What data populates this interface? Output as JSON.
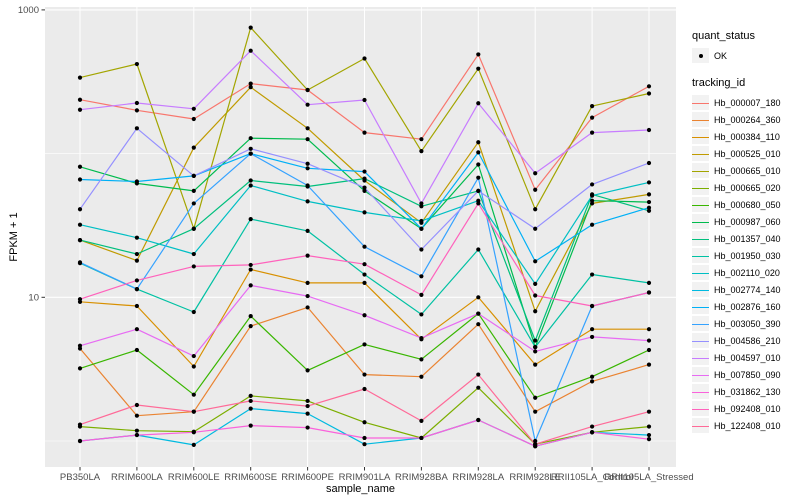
{
  "figure": {
    "colors": {
      "panel_background": "#EBEBEB",
      "gridline": "#FFFFFF",
      "axis_text": "#4D4D4D",
      "tick_mark": "#333333",
      "point": "#000000",
      "legend_key_background": "#F2F2F2"
    }
  },
  "chart_data": {
    "type": "line",
    "title": "",
    "xlabel": "sample_name",
    "ylabel": "FPKM + 1",
    "y_scale": "log10",
    "ylim": [
      0.6,
      1100
    ],
    "y_tick_labels": [
      {
        "value": 1000,
        "label": "1000"
      },
      {
        "value": 10,
        "label": "10"
      }
    ],
    "y_major_gridlines": [
      10,
      1000
    ],
    "y_minor_gridlines": [
      1,
      100
    ],
    "grid": "on",
    "legend_position": "right",
    "point_legend": {
      "title": "quant_status",
      "label": "OK"
    },
    "legend_title": "tracking_id",
    "categories": [
      "PB350LA",
      "RRIM600LA",
      "RRIM600LE",
      "RRIM600SE",
      "RRIM600PE",
      "RRIM901LA",
      "RRIM928BA",
      "RRIM928LA",
      "RRIM928LE",
      "RRII105LA_Control",
      "RRII105LA_Stressed"
    ],
    "series": [
      {
        "name": "Hb_000007_180",
        "color": "#F8766D",
        "values": [
          237,
          200,
          174,
          307,
          277,
          140,
          126,
          490,
          56,
          178,
          294
        ]
      },
      {
        "name": "Hb_000264_360",
        "color": "#EA8331",
        "values": [
          4.4,
          1.5,
          1.6,
          6.3,
          8.5,
          2.9,
          2.8,
          6.5,
          1.6,
          2.6,
          3.4
        ]
      },
      {
        "name": "Hb_000384_110",
        "color": "#D89000",
        "values": [
          9.3,
          8.7,
          3.3,
          15.6,
          12.6,
          12.6,
          5.1,
          10,
          3.4,
          6,
          6
        ]
      },
      {
        "name": "Hb_000525_010",
        "color": "#C09B00",
        "values": [
          25,
          18,
          110,
          290,
          150,
          65,
          33,
          120,
          8,
          45,
          52
        ]
      },
      {
        "name": "Hb_000665_010",
        "color": "#A3A500",
        "values": [
          338,
          420,
          30,
          753,
          277,
          459,
          104,
          390,
          41,
          214,
          262
        ]
      },
      {
        "name": "Hb_000665_020",
        "color": "#7CAE00",
        "values": [
          1.26,
          1.18,
          1.16,
          2.06,
          1.9,
          1.35,
          1.05,
          2.35,
          0.95,
          1.15,
          1.26
        ]
      },
      {
        "name": "Hb_000680_050",
        "color": "#39B600",
        "values": [
          3.2,
          4.3,
          2.1,
          7.4,
          3.1,
          4.7,
          3.7,
          7.7,
          2,
          2.8,
          4.3
        ]
      },
      {
        "name": "Hb_000987_060",
        "color": "#00BB4E",
        "values": [
          81,
          62,
          55,
          128,
          126,
          55,
          30,
          84,
          4.5,
          47,
          46
        ]
      },
      {
        "name": "Hb_001357_040",
        "color": "#00BF7D",
        "values": [
          25,
          20,
          30,
          65,
          59,
          67,
          43,
          55,
          5,
          52,
          40
        ]
      },
      {
        "name": "Hb_001950_030",
        "color": "#00C1A3",
        "values": [
          17.3,
          11.4,
          7.9,
          35,
          29,
          14.4,
          7.6,
          21.5,
          4.5,
          14.4,
          12.6
        ]
      },
      {
        "name": "Hb_002110_020",
        "color": "#00BFC4",
        "values": [
          32,
          26,
          20,
          60,
          46.5,
          39,
          34,
          47,
          12.4,
          51,
          63
        ]
      },
      {
        "name": "Hb_002774_140",
        "color": "#00BAE0",
        "values": [
          1,
          1.1,
          0.94,
          1.68,
          1.55,
          0.95,
          1.05,
          1.4,
          0.92,
          1.15,
          1.1
        ]
      },
      {
        "name": "Hb_002876_160",
        "color": "#00B0F6",
        "values": [
          66,
          64,
          70,
          100,
          79,
          75,
          30,
          102,
          17.8,
          32,
          42
        ]
      },
      {
        "name": "Hb_003050_390",
        "color": "#35A2FF",
        "values": [
          17.5,
          11.4,
          45,
          100,
          60,
          22.5,
          14,
          68,
          1,
          8.7,
          10.8
        ]
      },
      {
        "name": "Hb_004586_210",
        "color": "#9590FF",
        "values": [
          41,
          150,
          70,
          108,
          85,
          58,
          21.5,
          55,
          30,
          61,
          86
        ]
      },
      {
        "name": "Hb_004597_010",
        "color": "#C77CFF",
        "values": [
          202,
          225,
          205,
          520,
          219,
          236,
          45,
          224,
          73,
          140,
          146
        ]
      },
      {
        "name": "Hb_007850_090",
        "color": "#E76BF3",
        "values": [
          4.6,
          6,
          3.9,
          12.1,
          10.2,
          7.5,
          5.2,
          7.7,
          4.2,
          5.3,
          5
        ]
      },
      {
        "name": "Hb_031862_130",
        "color": "#FA62DB",
        "values": [
          1,
          1.1,
          1.15,
          1.28,
          1.24,
          1.05,
          1.05,
          1.4,
          0.92,
          1.15,
          1.03
        ]
      },
      {
        "name": "Hb_092408_010",
        "color": "#FF62BC",
        "values": [
          9.7,
          13.1,
          16.4,
          16.8,
          19.5,
          17,
          10.4,
          45,
          10.3,
          8.7,
          10.8
        ]
      },
      {
        "name": "Hb_122408_010",
        "color": "#FF6A98",
        "values": [
          1.3,
          1.78,
          1.6,
          1.9,
          1.75,
          2.3,
          1.38,
          2.9,
          0.95,
          1.26,
          1.6
        ]
      }
    ]
  }
}
